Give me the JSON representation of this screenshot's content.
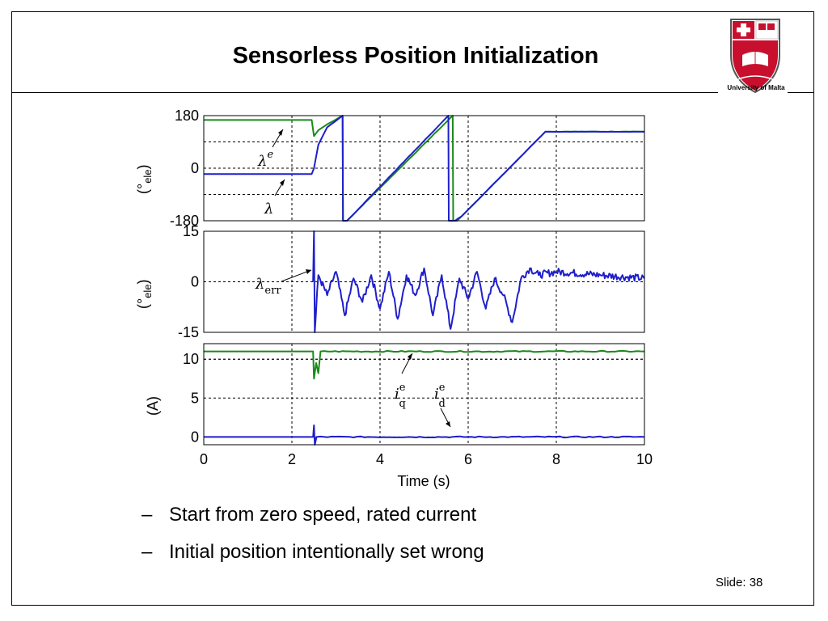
{
  "slide": {
    "title": "Sensorless Position Initialization",
    "logo_caption": "University of Malta",
    "bullet_marker": "–",
    "bullets": [
      "Start from zero speed, rated current",
      "Initial position intentionally set wrong"
    ],
    "slide_number": "Slide: 38",
    "colors": {
      "blue": "#1f1fcc",
      "green": "#1a8a1a",
      "logo_red": "#c8102e"
    }
  },
  "chart_data": [
    {
      "type": "line",
      "panel": "position",
      "ylabel_symbol": "(°",
      "ylabel_sub": "ele",
      "ylabel_close": ")",
      "ylim": [
        -180,
        180
      ],
      "yticks": [
        180,
        0,
        -180
      ],
      "grid": true,
      "series": [
        {
          "name": "λ",
          "name_superscript": "e",
          "color": "#1a8a1a",
          "points": [
            [
              0,
              165
            ],
            [
              2.45,
              165
            ],
            [
              2.5,
              110
            ],
            [
              2.6,
              130
            ],
            [
              2.8,
              150
            ],
            [
              3.15,
              180
            ],
            [
              3.16,
              -180
            ],
            [
              3.25,
              -180
            ],
            [
              3.35,
              -165
            ],
            [
              5.65,
              180
            ],
            [
              5.66,
              -180
            ],
            [
              5.75,
              -180
            ],
            [
              5.85,
              -165
            ],
            [
              7.75,
              125
            ],
            [
              10,
              125
            ]
          ]
        },
        {
          "name": "λ",
          "color": "#1f1fcc",
          "points": [
            [
              0,
              -20
            ],
            [
              2.45,
              -20
            ],
            [
              2.5,
              0
            ],
            [
              2.6,
              80
            ],
            [
              2.8,
              140
            ],
            [
              3.15,
              180
            ],
            [
              3.16,
              -180
            ],
            [
              3.25,
              -180
            ],
            [
              3.35,
              -165
            ],
            [
              5.55,
              180
            ],
            [
              5.56,
              -180
            ],
            [
              5.7,
              -180
            ],
            [
              5.85,
              -165
            ],
            [
              7.75,
              125
            ],
            [
              10,
              125
            ]
          ]
        }
      ]
    },
    {
      "type": "line",
      "panel": "error",
      "ylabel_symbol": "(°",
      "ylabel_sub": "ele",
      "ylabel_close": ")",
      "ylim": [
        -15,
        15
      ],
      "yticks": [
        15,
        0,
        -15
      ],
      "grid": true,
      "series": [
        {
          "name": "λ",
          "name_subscript": "err",
          "color": "#1f1fcc",
          "points": [
            [
              2.48,
              0
            ],
            [
              2.5,
              15
            ],
            [
              2.52,
              -15
            ],
            [
              2.6,
              2
            ],
            [
              2.8,
              -4
            ],
            [
              3.0,
              3
            ],
            [
              3.2,
              -10
            ],
            [
              3.4,
              1
            ],
            [
              3.6,
              -6
            ],
            [
              3.8,
              2
            ],
            [
              4.0,
              -8
            ],
            [
              4.2,
              3
            ],
            [
              4.4,
              -11
            ],
            [
              4.6,
              2
            ],
            [
              4.8,
              -4
            ],
            [
              5.0,
              4
            ],
            [
              5.2,
              -10
            ],
            [
              5.4,
              2
            ],
            [
              5.6,
              -14
            ],
            [
              5.8,
              1
            ],
            [
              6.0,
              -5
            ],
            [
              6.2,
              3
            ],
            [
              6.4,
              -8
            ],
            [
              6.6,
              1
            ],
            [
              6.8,
              -4
            ],
            [
              7.0,
              -12
            ],
            [
              7.2,
              1
            ],
            [
              7.4,
              4
            ],
            [
              7.6,
              2
            ],
            [
              8.0,
              3
            ],
            [
              9.0,
              2
            ],
            [
              10,
              1
            ]
          ]
        }
      ]
    },
    {
      "type": "line",
      "panel": "current",
      "ylabel": "(A)",
      "xlabel": "Time (s)",
      "xlim": [
        0,
        10
      ],
      "xticks": [
        0,
        2,
        4,
        6,
        8,
        10
      ],
      "ylim": [
        -1,
        12
      ],
      "yticks": [
        10,
        5,
        0
      ],
      "grid": true,
      "series": [
        {
          "name": "i",
          "name_superscript": "e",
          "name_subscript": "q",
          "color": "#1a8a1a",
          "points": [
            [
              0,
              11
            ],
            [
              2.48,
              11
            ],
            [
              2.5,
              7.5
            ],
            [
              2.55,
              9.5
            ],
            [
              2.6,
              8.2
            ],
            [
              2.65,
              11
            ],
            [
              10,
              11
            ]
          ]
        },
        {
          "name": "i",
          "name_superscript": "e",
          "name_subscript": "d",
          "color": "#1f1fcc",
          "points": [
            [
              0,
              0
            ],
            [
              2.48,
              0
            ],
            [
              2.5,
              1.5
            ],
            [
              2.52,
              -1
            ],
            [
              2.56,
              0
            ],
            [
              10,
              0
            ]
          ]
        }
      ]
    }
  ]
}
